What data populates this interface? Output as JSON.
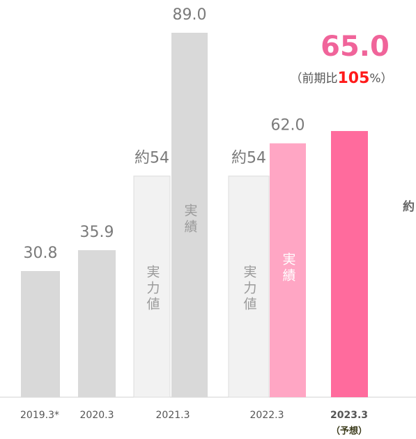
{
  "chart_data": {
    "type": "bar",
    "categories": [
      "2019.3*",
      "2020.3",
      "2021.3",
      "2022.3",
      "2023.3"
    ],
    "category_note": "（予想）",
    "ylim": [
      0,
      97
    ],
    "bars": [
      {
        "category": 0,
        "value": 30.8,
        "color": "#d9d9d9"
      },
      {
        "category": 1,
        "value": 35.9,
        "color": "#d9d9d9"
      },
      {
        "category": 2,
        "value": 54,
        "value_label": "約54",
        "inner_label": "実力値",
        "color": "#f2f2f2"
      },
      {
        "category": 2,
        "value": 89,
        "value_label": "89.0",
        "inner_label": "実績",
        "color": "#d9d9d9"
      },
      {
        "category": 3,
        "value": 54,
        "value_label": "約54",
        "inner_label": "実力値",
        "color": "#f2f2f2"
      },
      {
        "category": 3,
        "value": 62,
        "value_label": "62.0",
        "inner_label": "実績",
        "color": "#ffa6c4"
      },
      {
        "category": 4,
        "value": 65,
        "value_label": "65.0",
        "color": "#ff6b9d"
      }
    ],
    "growth_note": {
      "prefix": "（前期比",
      "value": 105,
      "suffix": "%）"
    },
    "side_annotation": "約"
  }
}
